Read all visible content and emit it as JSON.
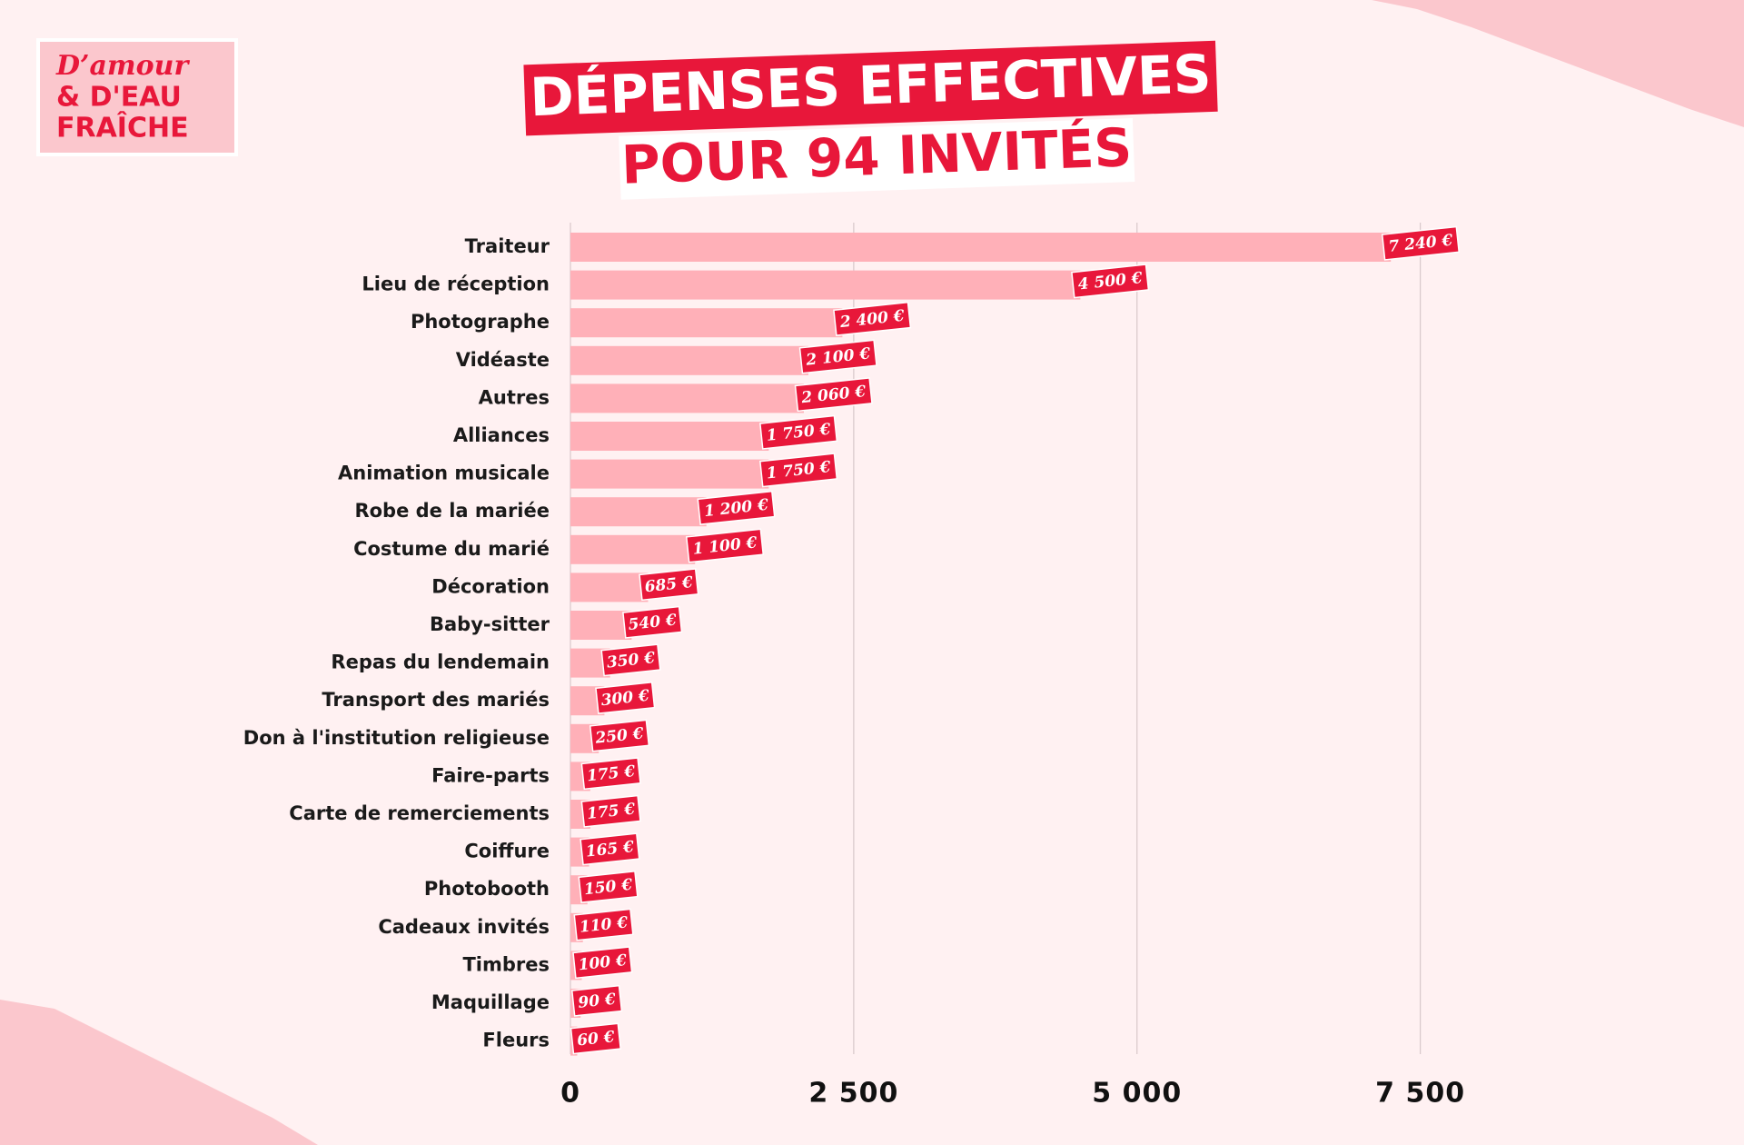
{
  "logo": [
    "D’amour",
    "& D'EAU",
    "FRAÎCHE"
  ],
  "chart_data": {
    "type": "barh",
    "title": "DÉPENSES EFFECTIVES",
    "subtitle": "POUR 94 INVITÉS",
    "categories": [
      "Traiteur",
      "Lieu de réception",
      "Photographe",
      "Vidéaste",
      "Autres",
      "Alliances",
      "Animation musicale",
      "Robe de la mariée",
      "Costume du marié",
      "Décoration",
      "Baby-sitter",
      "Repas du lendemain",
      "Transport des mariés",
      "Don à l'institution religieuse",
      "Faire-parts",
      "Carte de remerciements",
      "Coiffure",
      "Photobooth",
      "Cadeaux invités",
      "Timbres",
      "Maquillage",
      "Fleurs"
    ],
    "values": [
      7240,
      4500,
      2400,
      2100,
      2060,
      1750,
      1750,
      1200,
      1100,
      685,
      540,
      350,
      300,
      250,
      175,
      175,
      165,
      150,
      110,
      100,
      90,
      60
    ],
    "value_labels": [
      "7 240 €",
      "4 500 €",
      "2 400 €",
      "2 100 €",
      "2 060 €",
      "1 750 €",
      "1 750 €",
      "1 200 €",
      "1 100 €",
      "685 €",
      "540 €",
      "350 €",
      "300 €",
      "250 €",
      "175 €",
      "175 €",
      "165 €",
      "150 €",
      "110 €",
      "100 €",
      "90 €",
      "60 €"
    ],
    "color": "#ffb0b8",
    "label_color": "#e8173a",
    "xlim": [
      0,
      8000
    ],
    "xticks": [
      0,
      {
        "value": 2500,
        "label": "2 500"
      },
      {
        "value": 5000,
        "label": "5 000"
      },
      {
        "value": 7500,
        "label": "7 500"
      }
    ],
    "grid": true
  }
}
